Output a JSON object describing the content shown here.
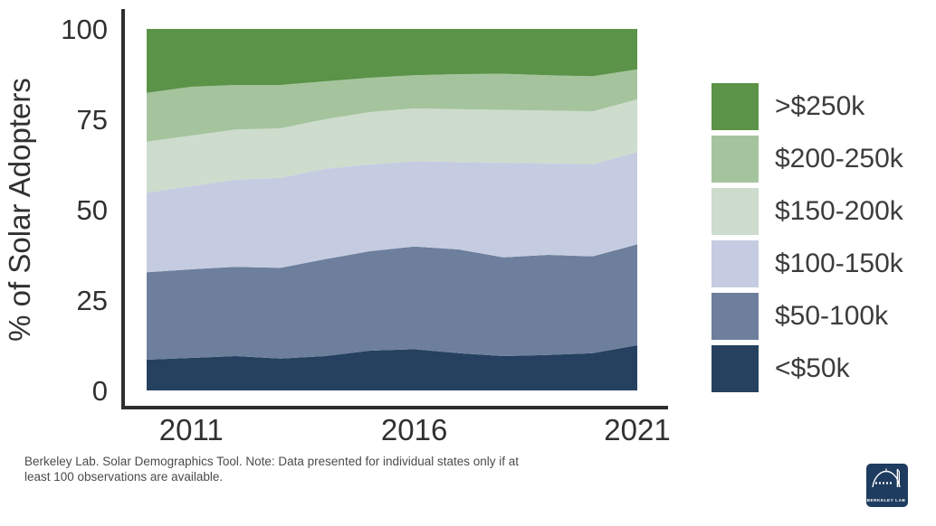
{
  "chart_data": {
    "type": "area",
    "stacked": true,
    "title": "",
    "xlabel": "",
    "ylabel": "% of Solar Adopters",
    "x": [
      2010,
      2011,
      2012,
      2013,
      2014,
      2015,
      2016,
      2017,
      2018,
      2019,
      2020,
      2021
    ],
    "x_ticks": [
      2011,
      2016,
      2021
    ],
    "y_ticks": [
      0,
      25,
      50,
      75,
      100
    ],
    "ylim": [
      0,
      100
    ],
    "grid": false,
    "legend_position": "right",
    "legend_order": "top_is_last_series",
    "series": [
      {
        "name": "<$50k",
        "color": "#25415F",
        "values": [
          8.5,
          9.0,
          9.5,
          8.8,
          9.5,
          11.0,
          11.4,
          10.3,
          9.5,
          9.8,
          10.3,
          12.5
        ]
      },
      {
        "name": "$50-100k",
        "color": "#6D7F9D",
        "values": [
          24.2,
          24.5,
          24.7,
          25.1,
          26.8,
          27.5,
          28.4,
          28.7,
          27.3,
          27.7,
          26.8,
          27.9
        ]
      },
      {
        "name": "$100-150k",
        "color": "#C5CCE1",
        "values": [
          22.0,
          23.0,
          24.1,
          24.9,
          25.0,
          24.0,
          23.6,
          24.2,
          26.2,
          25.3,
          25.5,
          25.5
        ]
      },
      {
        "name": "$150-200k",
        "color": "#CDDCCD",
        "values": [
          14.1,
          14.0,
          13.9,
          13.7,
          13.7,
          14.5,
          14.6,
          14.6,
          14.6,
          14.6,
          14.6,
          14.6
        ]
      },
      {
        "name": "$200-250k",
        "color": "#A5C49E",
        "values": [
          13.5,
          13.5,
          12.3,
          12.0,
          10.5,
          9.5,
          9.2,
          9.7,
          10.0,
          9.8,
          9.7,
          8.3
        ]
      },
      {
        "name": ">$250k",
        "color": "#5B9348",
        "values": [
          17.7,
          16.0,
          15.5,
          15.5,
          14.5,
          13.5,
          12.8,
          12.5,
          12.4,
          12.8,
          13.1,
          11.2
        ]
      }
    ],
    "axis_color": "#2e2e2e",
    "tick_text_color": "#313131"
  },
  "footnote": {
    "line1": "Berkeley Lab. Solar Demographics Tool. Note: Data presented for individual states only if at",
    "line2": "least 100 observations are available."
  },
  "logo": {
    "label": "BERKELEY LAB",
    "background": "#1E3C5F"
  }
}
